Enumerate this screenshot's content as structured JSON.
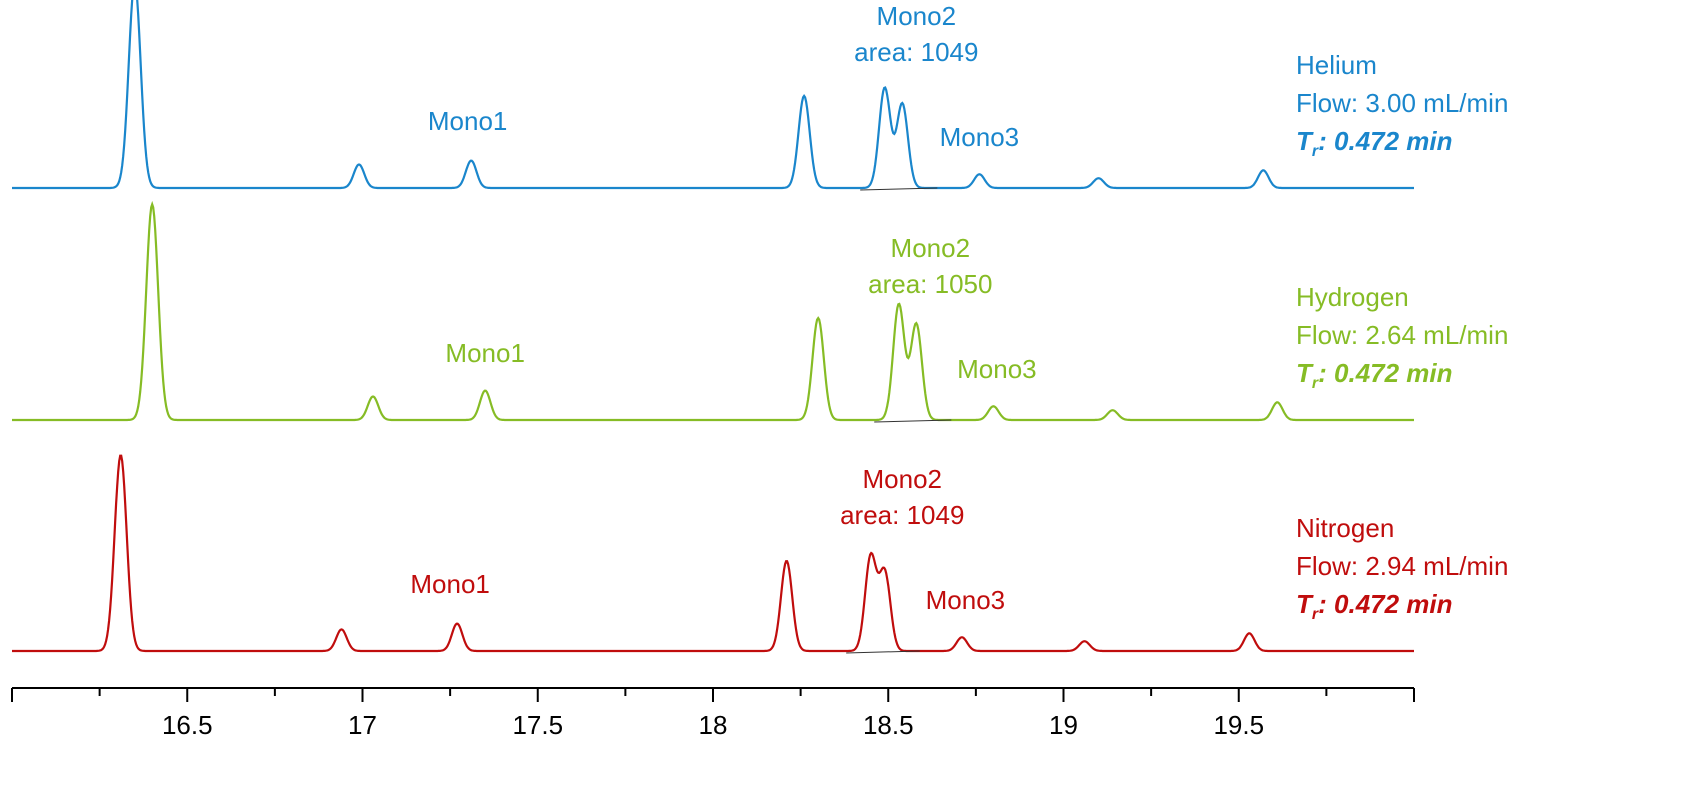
{
  "chart_data": {
    "type": "line",
    "title": "",
    "xlabel": "",
    "ylabel": "",
    "xlim": [
      16,
      20
    ],
    "x_ticks": [
      16.5,
      17,
      17.5,
      18,
      18.5,
      19,
      19.5
    ],
    "x_tick_labels": [
      "16.5",
      "17",
      "17.5",
      "18",
      "18.5",
      "19",
      "19.5"
    ],
    "grid": false,
    "legend": "none",
    "series": [
      {
        "name": "Helium",
        "color": "#1a86cc",
        "label_lines": [
          "Helium",
          "Flow: 3.00 mL/min"
        ],
        "tr_prefix": "T",
        "tr_sub": "r",
        "tr_value": ": 0.472 min",
        "peaks": [
          {
            "x": 16.35,
            "h": 1.05
          },
          {
            "x": 16.99,
            "h": 0.12
          },
          {
            "x": 17.31,
            "h": 0.14
          },
          {
            "x": 18.26,
            "h": 0.47
          },
          {
            "x": 18.49,
            "h": 0.51
          },
          {
            "x": 18.54,
            "h": 0.43
          },
          {
            "x": 18.76,
            "h": 0.07
          },
          {
            "x": 19.1,
            "h": 0.05
          },
          {
            "x": 19.57,
            "h": 0.09
          }
        ],
        "annotations": [
          {
            "text": "Mono1",
            "x": 17.3
          },
          {
            "text": "Mono2",
            "text2": "area: 1049",
            "x": 18.58
          },
          {
            "text": "Mono3",
            "x": 18.76
          }
        ]
      },
      {
        "name": "Hydrogen",
        "color": "#86bc25",
        "label_lines": [
          "Hydrogen",
          "Flow: 2.64 mL/min"
        ],
        "tr_prefix": "T",
        "tr_sub": "r",
        "tr_value": ": 0.472 min",
        "peaks": [
          {
            "x": 16.4,
            "h": 1.1
          },
          {
            "x": 17.03,
            "h": 0.12
          },
          {
            "x": 17.35,
            "h": 0.15
          },
          {
            "x": 18.3,
            "h": 0.52
          },
          {
            "x": 18.53,
            "h": 0.59
          },
          {
            "x": 18.58,
            "h": 0.49
          },
          {
            "x": 18.8,
            "h": 0.07
          },
          {
            "x": 19.14,
            "h": 0.05
          },
          {
            "x": 19.61,
            "h": 0.09
          }
        ],
        "annotations": [
          {
            "text": "Mono1",
            "x": 17.35
          },
          {
            "text": "Mono2",
            "text2": "area: 1050",
            "x": 18.62
          },
          {
            "text": "Mono3",
            "x": 18.81
          }
        ]
      },
      {
        "name": "Nitrogen",
        "color": "#c00d0d",
        "label_lines": [
          "Nitrogen",
          "Flow: 2.94 mL/min"
        ],
        "tr_prefix": "T",
        "tr_sub": "r",
        "tr_value": ": 0.472 min",
        "peaks": [
          {
            "x": 16.31,
            "h": 1.0
          },
          {
            "x": 16.94,
            "h": 0.11
          },
          {
            "x": 17.27,
            "h": 0.14
          },
          {
            "x": 18.21,
            "h": 0.46
          },
          {
            "x": 18.45,
            "h": 0.48
          },
          {
            "x": 18.49,
            "h": 0.4
          },
          {
            "x": 18.71,
            "h": 0.07
          },
          {
            "x": 19.06,
            "h": 0.05
          },
          {
            "x": 19.53,
            "h": 0.09
          }
        ],
        "annotations": [
          {
            "text": "Mono1",
            "x": 17.25
          },
          {
            "text": "Mono2",
            "text2": "area: 1049",
            "x": 18.54
          },
          {
            "text": "Mono3",
            "x": 18.72
          }
        ]
      }
    ]
  }
}
